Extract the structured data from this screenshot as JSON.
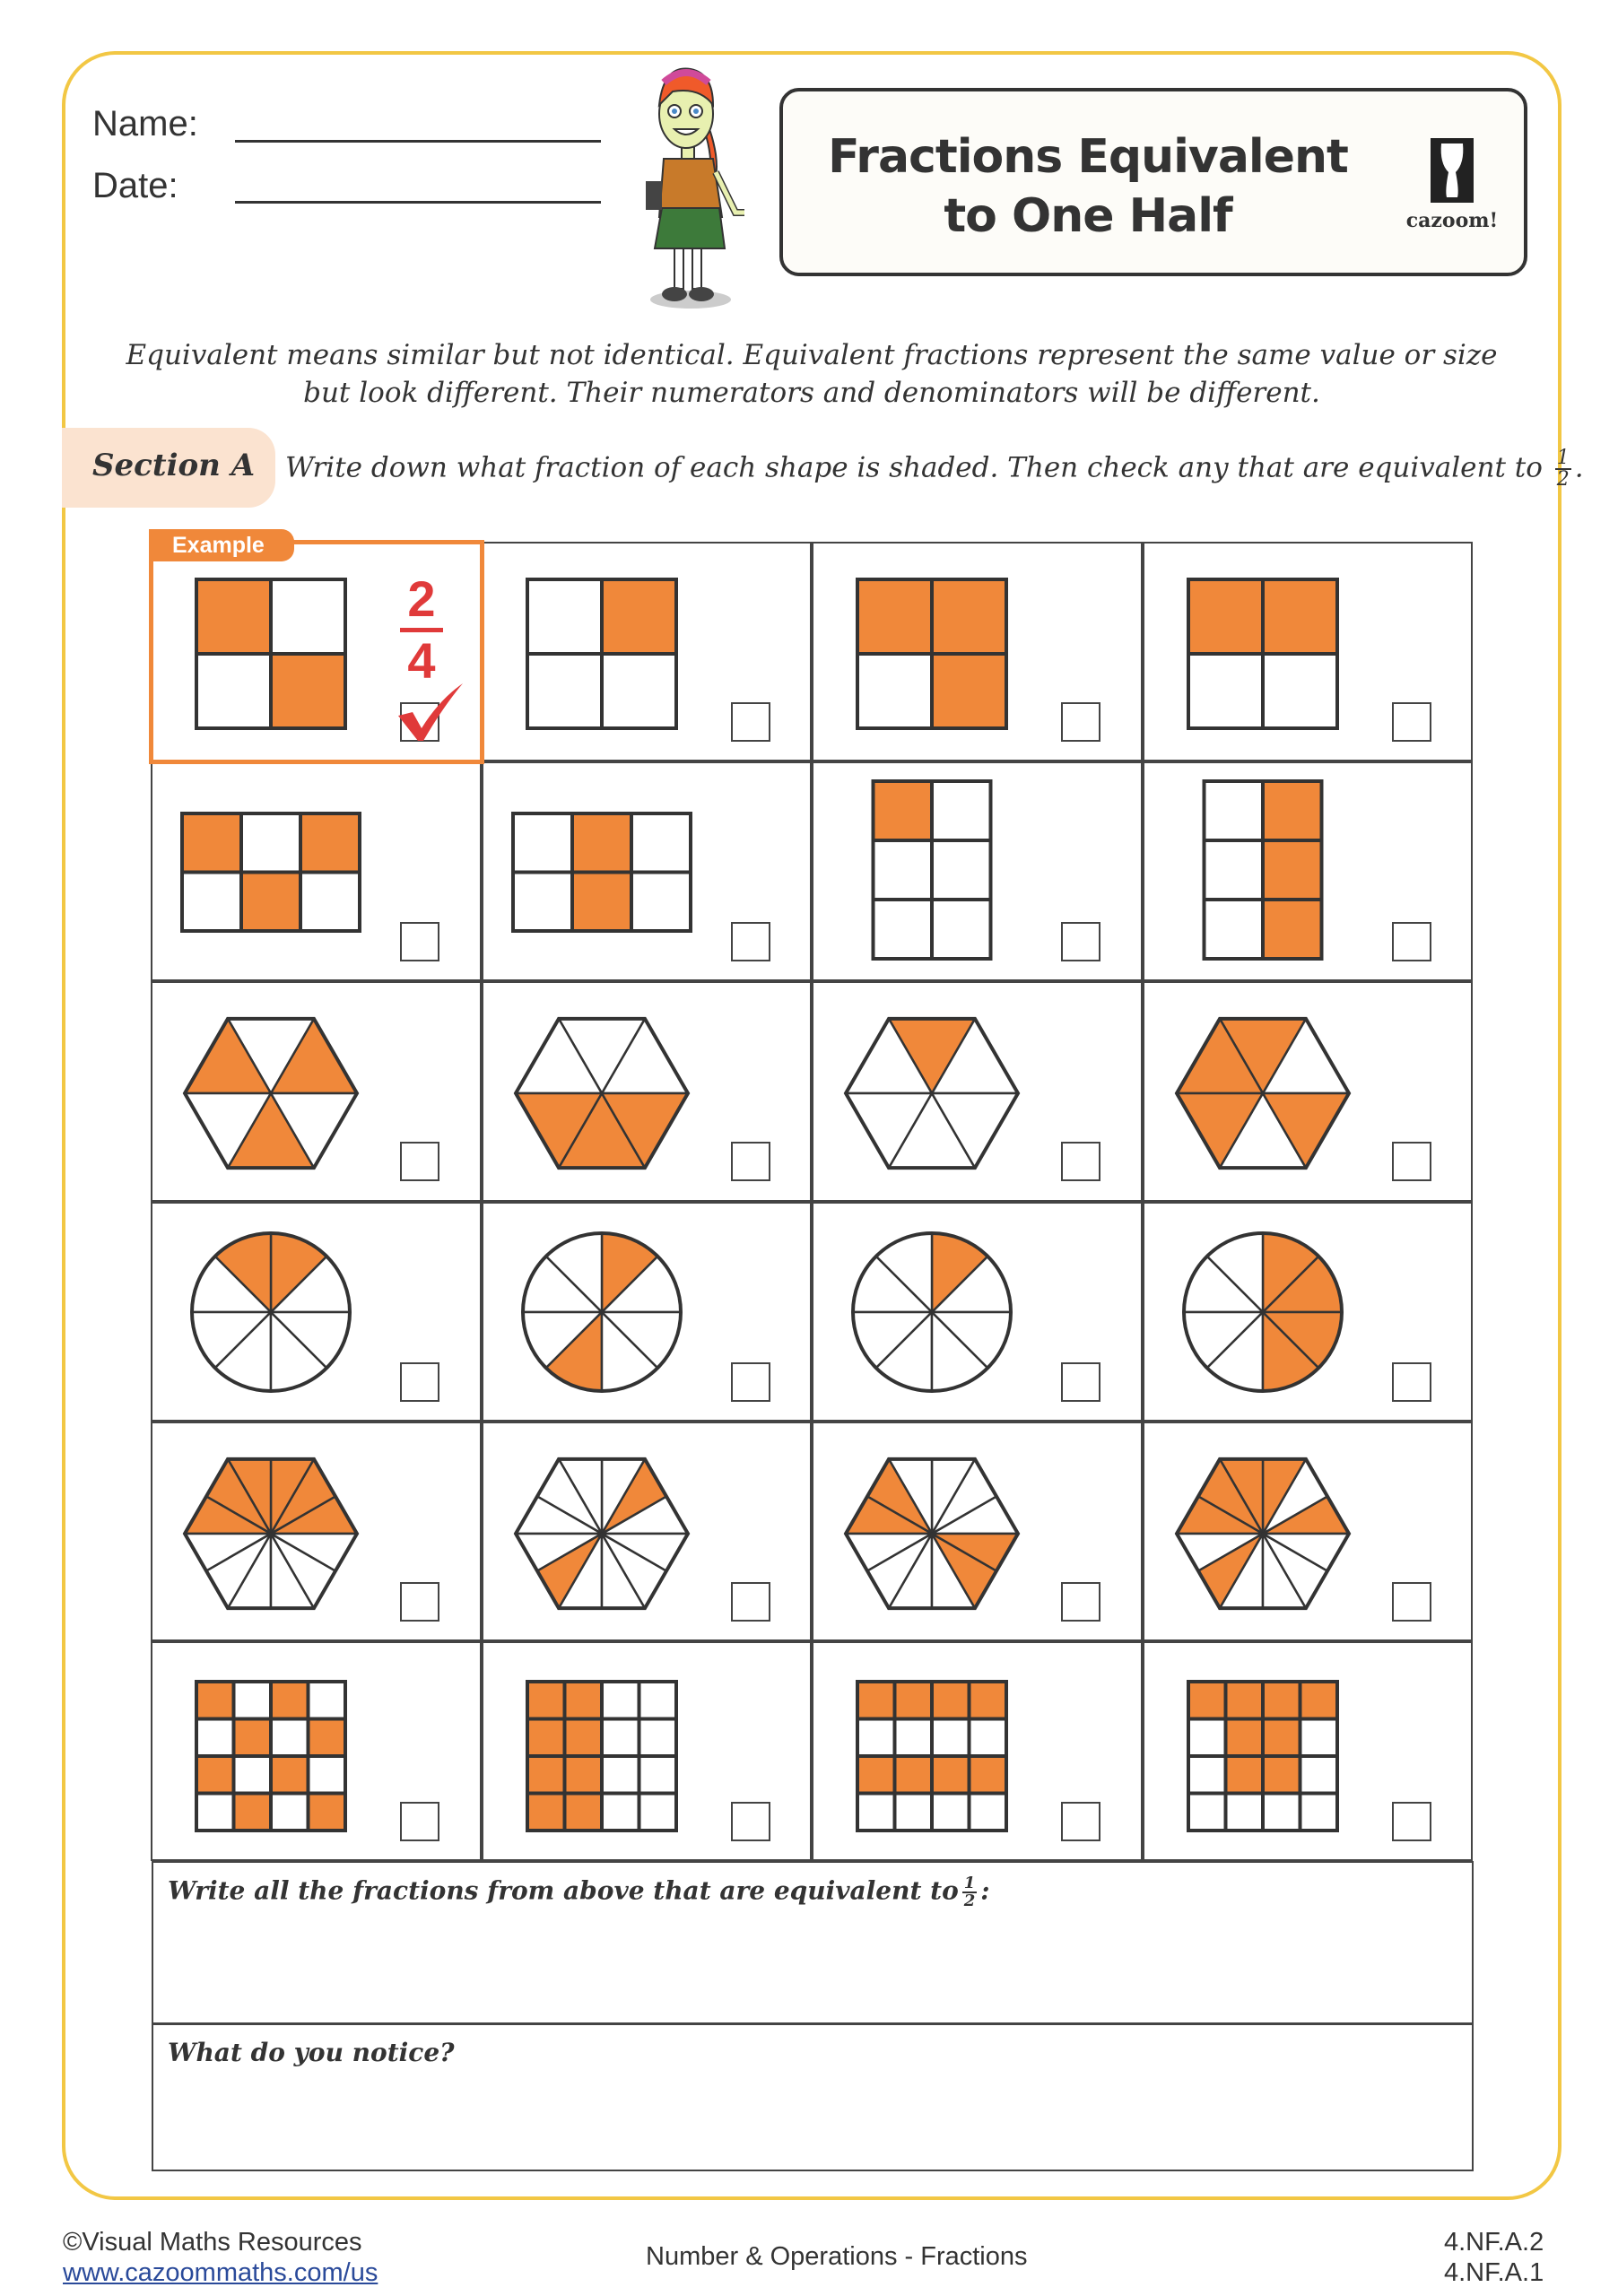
{
  "header": {
    "name_label": "Name:",
    "date_label": "Date:",
    "title_line1": "Fractions Equivalent",
    "title_line2": "to One Half",
    "logo_text": "cazoom!"
  },
  "intro": "Equivalent means similar but not identical. Equivalent fractions represent the same value or size but look different. Their numerators and denominators will be different.",
  "section": {
    "label": "Section A",
    "instruction": "Write down what fraction of each shape is shaded. Then check any that are equivalent to",
    "fraction": {
      "n": "1",
      "d": "2"
    },
    "end": "."
  },
  "colors": {
    "shade": "#f0883a",
    "border": "#f2c744",
    "answer": "#e03a3a",
    "pill": "#fbe3d0"
  },
  "example": {
    "label": "Example",
    "numerator": "2",
    "denominator": "4",
    "checked": true
  },
  "shapes": [
    {
      "type": "grid",
      "cols": 2,
      "rows": 2,
      "shaded": [
        0,
        3
      ]
    },
    {
      "type": "grid",
      "cols": 2,
      "rows": 2,
      "shaded": [
        1
      ]
    },
    {
      "type": "grid",
      "cols": 2,
      "rows": 2,
      "shaded": [
        0,
        1,
        3
      ]
    },
    {
      "type": "grid",
      "cols": 2,
      "rows": 2,
      "shaded": [
        0,
        1
      ]
    },
    {
      "type": "grid",
      "cols": 3,
      "rows": 2,
      "shaded": [
        0,
        2,
        4
      ]
    },
    {
      "type": "grid",
      "cols": 3,
      "rows": 2,
      "shaded": [
        1,
        4
      ]
    },
    {
      "type": "grid",
      "cols": 2,
      "rows": 3,
      "shaded": [
        0
      ]
    },
    {
      "type": "grid",
      "cols": 2,
      "rows": 3,
      "shaded": [
        1,
        3,
        5
      ]
    },
    {
      "type": "hexagon",
      "parts": 6,
      "shaded": [
        0,
        2,
        4
      ]
    },
    {
      "type": "hexagon",
      "parts": 6,
      "shaded": [
        3,
        4,
        5
      ]
    },
    {
      "type": "hexagon",
      "parts": 6,
      "shaded": [
        1
      ]
    },
    {
      "type": "hexagon",
      "parts": 6,
      "shaded": [
        1,
        2,
        3,
        5
      ]
    },
    {
      "type": "circle",
      "parts": 8,
      "shaded": [
        1,
        2
      ]
    },
    {
      "type": "circle",
      "parts": 8,
      "shaded": [
        1,
        5
      ]
    },
    {
      "type": "circle",
      "parts": 8,
      "shaded": [
        1
      ]
    },
    {
      "type": "circle",
      "parts": 8,
      "shaded": [
        6,
        7,
        0,
        1
      ]
    },
    {
      "type": "hexagon",
      "parts": 12,
      "shaded": [
        0,
        1,
        2,
        3,
        4,
        5
      ]
    },
    {
      "type": "hexagon",
      "parts": 12,
      "shaded": [
        1,
        7
      ]
    },
    {
      "type": "hexagon",
      "parts": 12,
      "shaded": [
        4,
        5,
        10,
        11
      ]
    },
    {
      "type": "hexagon",
      "parts": 12,
      "shaded": [
        0,
        2,
        3,
        4,
        5,
        7
      ]
    },
    {
      "type": "grid",
      "cols": 4,
      "rows": 4,
      "shaded": [
        0,
        2,
        5,
        7,
        8,
        10,
        13,
        15
      ]
    },
    {
      "type": "grid",
      "cols": 4,
      "rows": 4,
      "shaded": [
        0,
        1,
        4,
        5,
        8,
        9,
        12,
        13
      ]
    },
    {
      "type": "grid",
      "cols": 4,
      "rows": 4,
      "shaded": [
        0,
        1,
        2,
        3,
        8,
        9,
        10,
        11
      ]
    },
    {
      "type": "grid",
      "cols": 4,
      "rows": 4,
      "shaded": [
        0,
        1,
        2,
        3,
        5,
        6,
        9,
        10
      ]
    }
  ],
  "questions": {
    "q1": "Write all the fractions from above that are equivalent to",
    "q1_fraction": {
      "n": "1",
      "d": "2"
    },
    "q1_end": ":",
    "q2": "What do you notice?"
  },
  "footer": {
    "copyright": "©Visual Maths Resources",
    "website": "www.cazoommaths.com/us",
    "topic": "Number & Operations - Fractions",
    "standard1": "4.NF.A.2",
    "standard2": "4.NF.A.1"
  }
}
